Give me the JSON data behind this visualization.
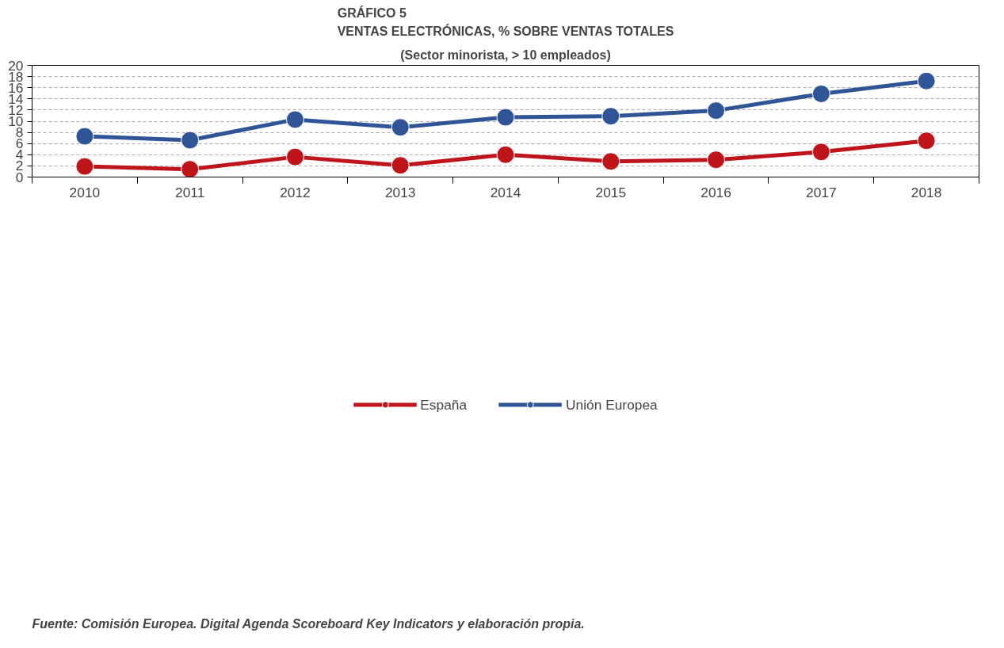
{
  "chart_data": {
    "type": "line",
    "title": "GRÁFICO 5\nVENTAS ELECTRÓNICAS, % SOBRE VENTAS TOTALES",
    "subtitle": "(Sector minorista, > 10 empleados)",
    "categories": [
      "2010",
      "2011",
      "2012",
      "2013",
      "2014",
      "2015",
      "2016",
      "2017",
      "2018"
    ],
    "series": [
      {
        "name": "España",
        "color": "#c0141b",
        "values": [
          1.9,
          1.4,
          3.6,
          2.1,
          4.0,
          2.8,
          3.1,
          4.5,
          6.5
        ]
      },
      {
        "name": "Unión Europea",
        "color": "#2f5597",
        "values": [
          7.3,
          6.6,
          10.3,
          8.9,
          10.7,
          10.9,
          11.9,
          14.9,
          17.2
        ]
      }
    ],
    "ylim": [
      0,
      20
    ],
    "yticks": [
      0,
      2,
      4,
      6,
      8,
      10,
      12,
      14,
      16,
      18,
      20
    ],
    "grid": "y",
    "legend": "bottom",
    "marker": "circle",
    "line_style": "solid",
    "annotations": [
      "Fuente: Comisión Europea. Digital Agenda Scoreboard Key Indicators y elaboración propia."
    ]
  }
}
